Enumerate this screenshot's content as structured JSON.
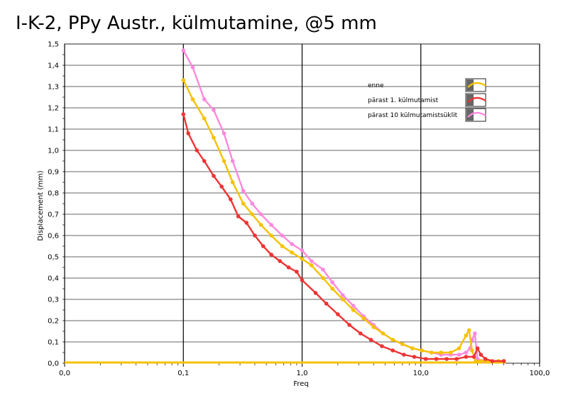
{
  "chart_data": {
    "type": "line",
    "title": "I-K-2, PPy Austr., külmutamine, @5 mm",
    "xlabel": "Freq",
    "ylabel": "Displacement (mm)",
    "x_scale": "log",
    "xlim": [
      0.01,
      100
    ],
    "ylim": [
      0,
      1.5
    ],
    "x_tick_values": [
      0.01,
      0.1,
      1,
      10,
      100
    ],
    "x_tick_labels": [
      "0,0",
      "0,1",
      "1,0",
      "10,0",
      "100,0"
    ],
    "y_tick_values": [
      0,
      0.1,
      0.2,
      0.3,
      0.4,
      0.5,
      0.6,
      0.7,
      0.8,
      0.9,
      1.0,
      1.1,
      1.2,
      1.3,
      1.4,
      1.5
    ],
    "y_tick_labels": [
      "0,0",
      "0,1",
      "0,2",
      "0,3",
      "0,4",
      "0,5",
      "0,6",
      "0,7",
      "0,8",
      "0,9",
      "1,0",
      "1,1",
      "1,2",
      "1,3",
      "1,4",
      "1,5"
    ],
    "grid": true,
    "legend_position": "top-right",
    "baseline": {
      "color": "#f5c200",
      "y": 0
    },
    "series": [
      {
        "name": "pärast 10 külmutamistsüklit",
        "color": "#ff88dd",
        "x": [
          0.1,
          0.12,
          0.15,
          0.18,
          0.22,
          0.26,
          0.32,
          0.38,
          0.45,
          0.55,
          0.68,
          0.82,
          1.0,
          1.2,
          1.5,
          1.8,
          2.2,
          2.7,
          3.3,
          4.0,
          4.8,
          5.8,
          7.0,
          8.5,
          10.2,
          12.3,
          14.8,
          17.8,
          21.0,
          24.0,
          26.0,
          27.0,
          28.5,
          30.0,
          33.0,
          38.0,
          45.0,
          50.0
        ],
        "y": [
          1.47,
          1.39,
          1.24,
          1.19,
          1.08,
          0.95,
          0.81,
          0.75,
          0.7,
          0.65,
          0.6,
          0.56,
          0.53,
          0.48,
          0.44,
          0.38,
          0.32,
          0.27,
          0.22,
          0.18,
          0.14,
          0.11,
          0.09,
          0.07,
          0.06,
          0.05,
          0.04,
          0.04,
          0.04,
          0.05,
          0.07,
          0.11,
          0.14,
          0.02,
          0.01,
          0.01,
          0.01,
          0.01
        ]
      },
      {
        "name": "enne",
        "color": "#f5c200",
        "x": [
          0.1,
          0.12,
          0.15,
          0.18,
          0.22,
          0.26,
          0.32,
          0.38,
          0.45,
          0.55,
          0.68,
          0.82,
          1.0,
          1.2,
          1.5,
          1.8,
          2.2,
          2.7,
          3.3,
          4.0,
          4.8,
          5.8,
          7.0,
          8.5,
          10.2,
          12.3,
          14.8,
          17.8,
          21.0,
          24.0,
          25.5,
          27.0,
          29.0,
          32.0,
          38.0,
          45.0,
          50.0
        ],
        "y": [
          1.33,
          1.24,
          1.15,
          1.06,
          0.95,
          0.85,
          0.75,
          0.7,
          0.65,
          0.6,
          0.55,
          0.52,
          0.49,
          0.46,
          0.4,
          0.35,
          0.3,
          0.25,
          0.21,
          0.17,
          0.14,
          0.11,
          0.09,
          0.07,
          0.06,
          0.05,
          0.05,
          0.05,
          0.07,
          0.13,
          0.155,
          0.06,
          0.01,
          0.01,
          0.01,
          0.01,
          0.01
        ]
      },
      {
        "name": "pärast 1. külmutamist",
        "color": "#ee3333",
        "x": [
          0.1,
          0.11,
          0.13,
          0.15,
          0.18,
          0.21,
          0.25,
          0.29,
          0.34,
          0.4,
          0.47,
          0.55,
          0.65,
          0.77,
          0.9,
          1.0,
          1.3,
          1.6,
          2.0,
          2.5,
          3.1,
          3.8,
          4.7,
          5.8,
          7.2,
          8.8,
          11.0,
          13.5,
          16.5,
          20.0,
          24.0,
          28.0,
          30.0,
          32.0,
          35.0,
          40.0,
          50.0
        ],
        "y": [
          1.17,
          1.08,
          1.0,
          0.95,
          0.88,
          0.83,
          0.77,
          0.69,
          0.66,
          0.6,
          0.55,
          0.51,
          0.48,
          0.45,
          0.43,
          0.39,
          0.33,
          0.28,
          0.23,
          0.18,
          0.14,
          0.11,
          0.08,
          0.06,
          0.04,
          0.03,
          0.02,
          0.02,
          0.02,
          0.02,
          0.03,
          0.03,
          0.07,
          0.04,
          0.02,
          0.01,
          0.01
        ]
      }
    ],
    "legend_order": [
      "enne",
      "pärast 1. külmutamist",
      "pärast 10 külmutamistsüklit"
    ]
  }
}
